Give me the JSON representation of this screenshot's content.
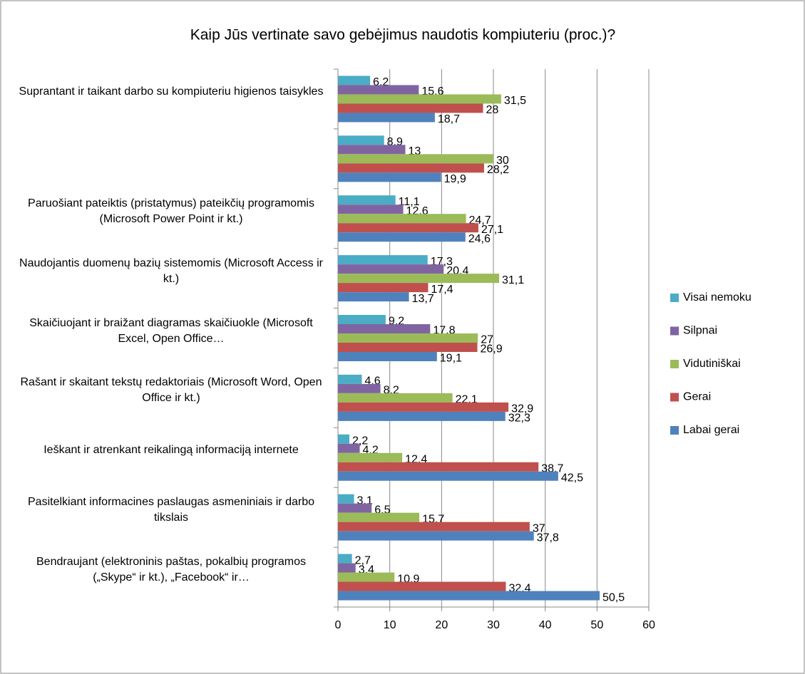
{
  "chart_data": {
    "type": "hbar",
    "title": "Kaip Jūs vertinate savo gebėjimus naudotis kompiuteriu (proc.)?",
    "categories": [
      "Suprantant ir taikant darbo su kompiuteriu higienos taisykles",
      null,
      "Paruošiant pateiktis (pristatymus) pateikčių programomis (Microsoft Power Point ir kt.)",
      "Naudojantis duomenų bazių sistemomis (Microsoft Access ir kt.)",
      "Skaičiuojant ir braižant diagramas skaičiuokle (Microsoft Excel, Open Office…",
      "Rašant ir skaitant tekstų redaktoriais (Microsoft Word, Open Office ir kt.)",
      "Ieškant ir atrenkant reikalingą informaciją internete",
      "Pasitelkiant informacines paslaugas asmeniniais ir darbo tikslais",
      "Bendraujant (elektroninis paštas, pokalbių programos („Skype“ ir kt.), „Facebook“ ir…"
    ],
    "series": [
      {
        "name": "Visai nemoku",
        "color": "#4bacc6",
        "values": [
          6.2,
          8.9,
          11.1,
          17.3,
          9.2,
          4.6,
          2.2,
          3.1,
          2.7
        ],
        "value_labels": [
          "6,2",
          "8,9",
          "11,1",
          "17,3",
          "9,2",
          "4,6",
          "2,2",
          "3,1",
          "2,7"
        ]
      },
      {
        "name": "Silpnai",
        "color": "#8064a2",
        "values": [
          15.6,
          13,
          12.6,
          20.4,
          17.8,
          8.2,
          4.2,
          6.5,
          3.4
        ],
        "value_labels": [
          "15,6",
          "13",
          "12,6",
          "20,4",
          "17,8",
          "8,2",
          "4,2",
          "6,5",
          "3,4"
        ]
      },
      {
        "name": "Vidutiniškai",
        "color": "#9bbb59",
        "values": [
          31.5,
          30,
          24.7,
          31.1,
          27,
          22.1,
          12.4,
          15.7,
          10.9
        ],
        "value_labels": [
          "31,5",
          "30",
          "24,7",
          "31,1",
          "27",
          "22,1",
          "12,4",
          "15,7",
          "10,9"
        ]
      },
      {
        "name": "Gerai",
        "color": "#c0504d",
        "values": [
          28,
          28.2,
          27.1,
          17.4,
          26.9,
          32.9,
          38.7,
          37,
          32.4
        ],
        "value_labels": [
          "28",
          "28,2",
          "27,1",
          "17,4",
          "26,9",
          "32,9",
          "38,7",
          "37",
          "32,4"
        ]
      },
      {
        "name": "Labai gerai",
        "color": "#4f81bd",
        "values": [
          18.7,
          19.9,
          24.6,
          13.7,
          19.1,
          32.3,
          42.5,
          37.8,
          50.5
        ],
        "value_labels": [
          "18,7",
          "19,9",
          "24,6",
          "13,7",
          "19,1",
          "32,3",
          "42,5",
          "37,8",
          "50,5"
        ]
      }
    ],
    "xlim": [
      0,
      60
    ],
    "xticks": [
      0,
      10,
      20,
      30,
      40,
      50,
      60
    ],
    "grid": true,
    "legend": "right"
  }
}
